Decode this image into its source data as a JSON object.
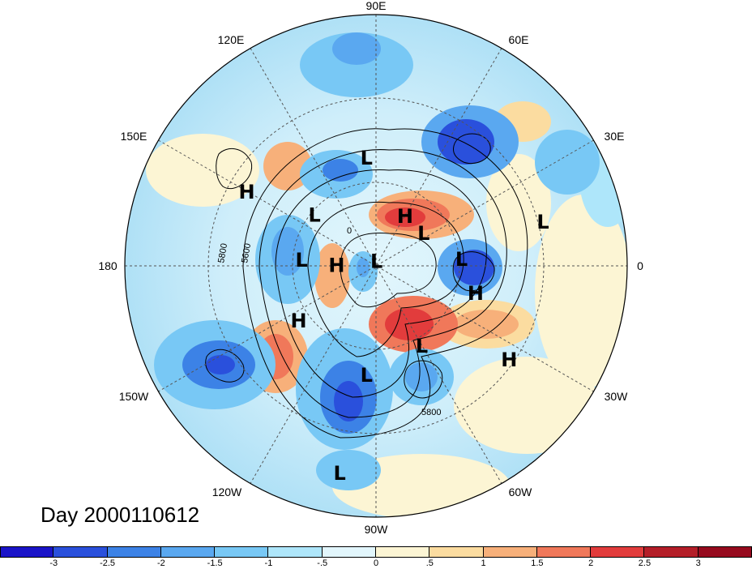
{
  "map": {
    "longitude_labels": [
      "90E",
      "60E",
      "30E",
      "0",
      "30W",
      "60W",
      "90W",
      "120W",
      "150W",
      "180",
      "150E",
      "120E"
    ],
    "pressure_centers": [
      {
        "kind": "L",
        "lon": 95,
        "lat": 50
      },
      {
        "kind": "L",
        "lon": 35,
        "lat": 68
      },
      {
        "kind": "L",
        "lon": 15,
        "lat": 30
      },
      {
        "kind": "L",
        "lon": 140,
        "lat": 60
      },
      {
        "kind": "L",
        "lon": 175,
        "lat": 62
      },
      {
        "kind": "L",
        "lon": 5,
        "lat": 58
      },
      {
        "kind": "L",
        "lon": 85,
        "lat": 88
      },
      {
        "kind": "L",
        "lon": -95,
        "lat": 50
      },
      {
        "kind": "L",
        "lon": -60,
        "lat": 56
      },
      {
        "kind": "L",
        "lon": -100,
        "lat": 20
      },
      {
        "kind": "H",
        "lon": 150,
        "lat": 37
      },
      {
        "kind": "H",
        "lon": 60,
        "lat": 68
      },
      {
        "kind": "H",
        "lon": 178,
        "lat": 75
      },
      {
        "kind": "H",
        "lon": -145,
        "lat": 55
      },
      {
        "kind": "H",
        "lon": -15,
        "lat": 52
      },
      {
        "kind": "H",
        "lon": -35,
        "lat": 33
      }
    ],
    "contour_labels": [
      "5800",
      "5600",
      "0",
      "5800"
    ]
  },
  "day_label": "Day 2000110612",
  "colorbar": {
    "tick_labels": [
      "-3",
      "-2.5",
      "-2",
      "-1.5",
      "-1",
      "-.5",
      "0",
      ".5",
      "1",
      "1.5",
      "2",
      "2.5",
      "3"
    ],
    "colors": [
      "#1a14c8",
      "#2a50dc",
      "#3c82e6",
      "#5aa8f0",
      "#78c8f5",
      "#aee6fa",
      "#e2f6fc",
      "#fcf5d4",
      "#fbdca0",
      "#f7b07a",
      "#f0785a",
      "#e23c3c",
      "#b41e28",
      "#960a1e"
    ]
  }
}
